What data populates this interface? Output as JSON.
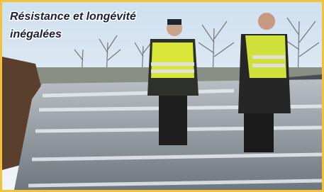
{
  "caption": {
    "line1": "Résistance et longévité",
    "line2": "inégalées"
  }
}
